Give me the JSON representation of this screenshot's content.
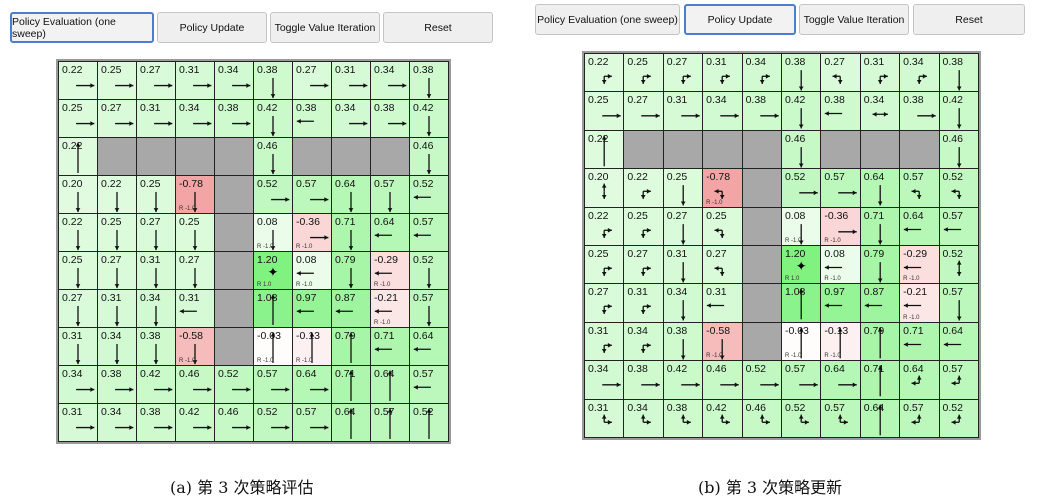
{
  "colors": {
    "positive_max": "#7ff27f",
    "positive_min": "#f3fdf3",
    "negative": "#f3a3a3",
    "wall": "#a8a8a8",
    "active_border": "#4a7fd0"
  },
  "panels": [
    {
      "buttons": [
        "Policy Evaluation (one sweep)",
        "Policy Update",
        "Toggle Value Iteration",
        "Reset"
      ],
      "active_button": 0,
      "caption": "(a) 第 3 次策略评估",
      "grid": [
        [
          {
            "v": "0.22",
            "a": "R"
          },
          {
            "v": "0.25",
            "a": "R"
          },
          {
            "v": "0.27",
            "a": "R"
          },
          {
            "v": "0.31",
            "a": "R"
          },
          {
            "v": "0.34",
            "a": "R"
          },
          {
            "v": "0.38",
            "a": "D"
          },
          {
            "v": "0.27",
            "a": "R"
          },
          {
            "v": "0.31",
            "a": "R"
          },
          {
            "v": "0.34",
            "a": "R"
          },
          {
            "v": "0.38",
            "a": "D"
          }
        ],
        [
          {
            "v": "0.25",
            "a": "R"
          },
          {
            "v": "0.27",
            "a": "R"
          },
          {
            "v": "0.31",
            "a": "R"
          },
          {
            "v": "0.34",
            "a": "R"
          },
          {
            "v": "0.38",
            "a": "R"
          },
          {
            "v": "0.42",
            "a": "D"
          },
          {
            "v": "0.38",
            "a": "L"
          },
          {
            "v": "0.34",
            "a": "R"
          },
          {
            "v": "0.38",
            "a": "R"
          },
          {
            "v": "0.42",
            "a": "D"
          }
        ],
        [
          {
            "v": "0.22",
            "a": "U"
          },
          null,
          null,
          null,
          null,
          {
            "v": "0.46",
            "a": "D"
          },
          null,
          null,
          null,
          {
            "v": "0.46",
            "a": "D"
          }
        ],
        [
          {
            "v": "0.20",
            "a": "D"
          },
          {
            "v": "0.22",
            "a": "D"
          },
          {
            "v": "0.25",
            "a": "D"
          },
          {
            "v": "-0.78",
            "a": "D",
            "r": "R -1.0"
          },
          null,
          {
            "v": "0.52",
            "a": "R"
          },
          {
            "v": "0.57",
            "a": "R"
          },
          {
            "v": "0.64",
            "a": "D"
          },
          {
            "v": "0.57",
            "a": "D"
          },
          {
            "v": "0.52",
            "a": "L"
          }
        ],
        [
          {
            "v": "0.22",
            "a": "D"
          },
          {
            "v": "0.25",
            "a": "D"
          },
          {
            "v": "0.27",
            "a": "D"
          },
          {
            "v": "0.25",
            "a": "D"
          },
          null,
          {
            "v": "0.08",
            "a": "D",
            "r": "R -1.0"
          },
          {
            "v": "-0.36",
            "a": "R",
            "r": "R -1.0"
          },
          {
            "v": "0.71",
            "a": "D"
          },
          {
            "v": "0.64",
            "a": "L"
          },
          {
            "v": "0.57",
            "a": "L"
          }
        ],
        [
          {
            "v": "0.25",
            "a": "D"
          },
          {
            "v": "0.27",
            "a": "D"
          },
          {
            "v": "0.31",
            "a": "D"
          },
          {
            "v": "0.27",
            "a": "D"
          },
          null,
          {
            "v": "1.20",
            "a": "",
            "goal": "✦",
            "r": "R 1.0"
          },
          {
            "v": "0.08",
            "a": "L",
            "r": "R -1.0"
          },
          {
            "v": "0.79",
            "a": "D"
          },
          {
            "v": "-0.29",
            "a": "L",
            "r": "R -1.0"
          },
          {
            "v": "0.52",
            "a": "D"
          }
        ],
        [
          {
            "v": "0.27",
            "a": "D"
          },
          {
            "v": "0.31",
            "a": "D"
          },
          {
            "v": "0.34",
            "a": "D"
          },
          {
            "v": "0.31",
            "a": "L"
          },
          null,
          {
            "v": "1.08",
            "a": "U"
          },
          {
            "v": "0.97",
            "a": "L"
          },
          {
            "v": "0.87",
            "a": "L"
          },
          {
            "v": "-0.21",
            "a": "L",
            "r": "R -1.0"
          },
          {
            "v": "0.57",
            "a": "D"
          }
        ],
        [
          {
            "v": "0.31",
            "a": "D"
          },
          {
            "v": "0.34",
            "a": "D"
          },
          {
            "v": "0.38",
            "a": "D"
          },
          {
            "v": "-0.58",
            "a": "D",
            "r": "R -1.0"
          },
          null,
          {
            "v": "-0.03",
            "a": "U",
            "r": "R -1.0"
          },
          {
            "v": "-0.13",
            "a": "U",
            "r": "R -1.0"
          },
          {
            "v": "0.79",
            "a": "U"
          },
          {
            "v": "0.71",
            "a": "L"
          },
          {
            "v": "0.64",
            "a": "L"
          }
        ],
        [
          {
            "v": "0.34",
            "a": "R"
          },
          {
            "v": "0.38",
            "a": "R"
          },
          {
            "v": "0.42",
            "a": "R"
          },
          {
            "v": "0.46",
            "a": "R"
          },
          {
            "v": "0.52",
            "a": "R"
          },
          {
            "v": "0.57",
            "a": "R"
          },
          {
            "v": "0.64",
            "a": "R"
          },
          {
            "v": "0.71",
            "a": "U"
          },
          {
            "v": "0.64",
            "a": "U"
          },
          {
            "v": "0.57",
            "a": "L"
          }
        ],
        [
          {
            "v": "0.31",
            "a": "R"
          },
          {
            "v": "0.34",
            "a": "R"
          },
          {
            "v": "0.38",
            "a": "R"
          },
          {
            "v": "0.42",
            "a": "R"
          },
          {
            "v": "0.46",
            "a": "R"
          },
          {
            "v": "0.52",
            "a": "R"
          },
          {
            "v": "0.57",
            "a": "R"
          },
          {
            "v": "0.64",
            "a": "U"
          },
          {
            "v": "0.57",
            "a": "U"
          },
          {
            "v": "0.52",
            "a": "U"
          }
        ]
      ]
    },
    {
      "buttons": [
        "Policy Evaluation (one sweep)",
        "Policy Update",
        "Toggle Value Iteration",
        "Reset"
      ],
      "active_button": 1,
      "caption": "(b) 第 3 次策略更新",
      "grid": [
        [
          {
            "v": "0.22",
            "a": "DR"
          },
          {
            "v": "0.25",
            "a": "DR"
          },
          {
            "v": "0.27",
            "a": "DR"
          },
          {
            "v": "0.31",
            "a": "DR"
          },
          {
            "v": "0.34",
            "a": "DR"
          },
          {
            "v": "0.38",
            "a": "D"
          },
          {
            "v": "0.27",
            "a": "LD"
          },
          {
            "v": "0.31",
            "a": "DR"
          },
          {
            "v": "0.34",
            "a": "DR"
          },
          {
            "v": "0.38",
            "a": "D"
          }
        ],
        [
          {
            "v": "0.25",
            "a": "R"
          },
          {
            "v": "0.27",
            "a": "R"
          },
          {
            "v": "0.31",
            "a": "R"
          },
          {
            "v": "0.34",
            "a": "R"
          },
          {
            "v": "0.38",
            "a": "R"
          },
          {
            "v": "0.42",
            "a": "D"
          },
          {
            "v": "0.38",
            "a": "L"
          },
          {
            "v": "0.34",
            "a": "LR"
          },
          {
            "v": "0.38",
            "a": "R"
          },
          {
            "v": "0.42",
            "a": "D"
          }
        ],
        [
          {
            "v": "0.22",
            "a": "U"
          },
          null,
          null,
          null,
          null,
          {
            "v": "0.46",
            "a": "D"
          },
          null,
          null,
          null,
          {
            "v": "0.46",
            "a": "D"
          }
        ],
        [
          {
            "v": "0.20",
            "a": "UD"
          },
          {
            "v": "0.22",
            "a": "DR"
          },
          {
            "v": "0.25",
            "a": "D"
          },
          {
            "v": "-0.78",
            "a": "LD",
            "r": "R -1.0"
          },
          null,
          {
            "v": "0.52",
            "a": "R"
          },
          {
            "v": "0.57",
            "a": "R"
          },
          {
            "v": "0.64",
            "a": "D"
          },
          {
            "v": "0.57",
            "a": "LD"
          },
          {
            "v": "0.52",
            "a": "LD"
          }
        ],
        [
          {
            "v": "0.22",
            "a": "DR"
          },
          {
            "v": "0.25",
            "a": "DR"
          },
          {
            "v": "0.27",
            "a": "D"
          },
          {
            "v": "0.25",
            "a": "LD"
          },
          null,
          {
            "v": "0.08",
            "a": "D",
            "r": "R -1.0"
          },
          {
            "v": "-0.36",
            "a": "R",
            "r": "R -1.0"
          },
          {
            "v": "0.71",
            "a": "D"
          },
          {
            "v": "0.64",
            "a": "L"
          },
          {
            "v": "0.57",
            "a": "L"
          }
        ],
        [
          {
            "v": "0.25",
            "a": "DR"
          },
          {
            "v": "0.27",
            "a": "DR"
          },
          {
            "v": "0.31",
            "a": "D"
          },
          {
            "v": "0.27",
            "a": "LD"
          },
          null,
          {
            "v": "1.20",
            "a": "",
            "goal": "✦",
            "r": "R 1.0"
          },
          {
            "v": "0.08",
            "a": "L",
            "r": "R -1.0"
          },
          {
            "v": "0.79",
            "a": "D"
          },
          {
            "v": "-0.29",
            "a": "L",
            "r": "R -1.0"
          },
          {
            "v": "0.52",
            "a": "UD"
          }
        ],
        [
          {
            "v": "0.27",
            "a": "DR"
          },
          {
            "v": "0.31",
            "a": "DR"
          },
          {
            "v": "0.34",
            "a": "D"
          },
          {
            "v": "0.31",
            "a": "L"
          },
          null,
          {
            "v": "1.08",
            "a": "U"
          },
          {
            "v": "0.97",
            "a": "L"
          },
          {
            "v": "0.87",
            "a": "L"
          },
          {
            "v": "-0.21",
            "a": "L",
            "r": "R -1.0"
          },
          {
            "v": "0.57",
            "a": "D"
          }
        ],
        [
          {
            "v": "0.31",
            "a": "DR"
          },
          {
            "v": "0.34",
            "a": "DR"
          },
          {
            "v": "0.38",
            "a": "D"
          },
          {
            "v": "-0.58",
            "a": "D",
            "r": "R -1.0"
          },
          null,
          {
            "v": "-0.03",
            "a": "U",
            "r": "R -1.0"
          },
          {
            "v": "-0.13",
            "a": "U",
            "r": "R -1.0"
          },
          {
            "v": "0.79",
            "a": "U"
          },
          {
            "v": "0.71",
            "a": "L"
          },
          {
            "v": "0.64",
            "a": "L"
          }
        ],
        [
          {
            "v": "0.34",
            "a": "R"
          },
          {
            "v": "0.38",
            "a": "R"
          },
          {
            "v": "0.42",
            "a": "R"
          },
          {
            "v": "0.46",
            "a": "R"
          },
          {
            "v": "0.52",
            "a": "R"
          },
          {
            "v": "0.57",
            "a": "R"
          },
          {
            "v": "0.64",
            "a": "R"
          },
          {
            "v": "0.71",
            "a": "U"
          },
          {
            "v": "0.64",
            "a": "UL"
          },
          {
            "v": "0.57",
            "a": "UL"
          }
        ],
        [
          {
            "v": "0.31",
            "a": "UR"
          },
          {
            "v": "0.34",
            "a": "UR"
          },
          {
            "v": "0.38",
            "a": "UR"
          },
          {
            "v": "0.42",
            "a": "UR"
          },
          {
            "v": "0.46",
            "a": "UR"
          },
          {
            "v": "0.52",
            "a": "UR"
          },
          {
            "v": "0.57",
            "a": "UR"
          },
          {
            "v": "0.64",
            "a": "U"
          },
          {
            "v": "0.57",
            "a": "UL"
          },
          {
            "v": "0.52",
            "a": "UL"
          }
        ]
      ]
    }
  ]
}
